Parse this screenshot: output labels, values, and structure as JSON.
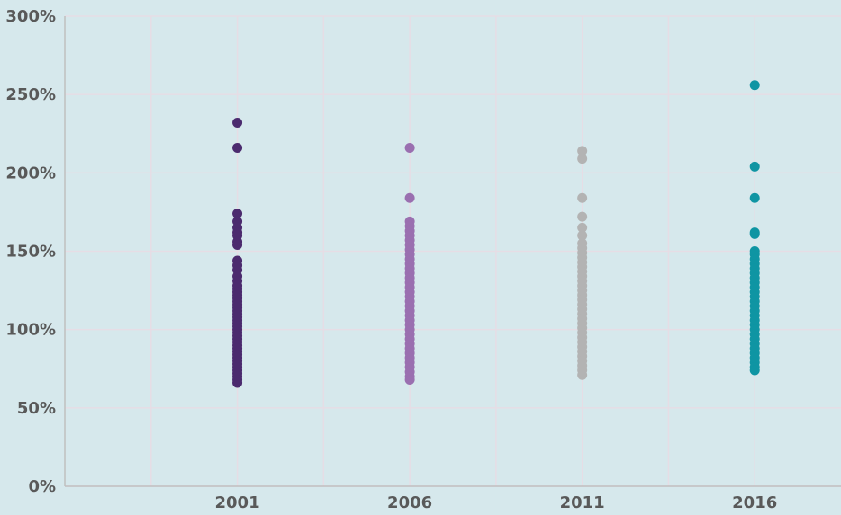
{
  "chart_data": {
    "type": "strip",
    "xlim": [
      1996,
      2018.5
    ],
    "xticks": [
      2001,
      2006,
      2011,
      2016
    ],
    "xgrid": [
      1998.5,
      2003.5,
      2008.5,
      2013.5
    ],
    "ylim": [
      0,
      300
    ],
    "yticks": [
      {
        "value": 0,
        "label": "0%"
      },
      {
        "value": 50,
        "label": "50%"
      },
      {
        "value": 100,
        "label": "100%"
      },
      {
        "value": 150,
        "label": "150%"
      },
      {
        "value": 200,
        "label": "200%"
      },
      {
        "value": 250,
        "label": "250%"
      },
      {
        "value": 300,
        "label": "300%"
      }
    ],
    "grid": true,
    "series": [
      {
        "x": 2001,
        "color": "#4b2a6e",
        "values": [
          232,
          216,
          174,
          169,
          165,
          162,
          160,
          156,
          154,
          144,
          141,
          138,
          134,
          131,
          128,
          126,
          124,
          122,
          120,
          118,
          116,
          114,
          112,
          110,
          108,
          106,
          104,
          102,
          100,
          98,
          96,
          94,
          92,
          90,
          88,
          86,
          84,
          82,
          80,
          78,
          76,
          74,
          72,
          70,
          68,
          66
        ]
      },
      {
        "x": 2006,
        "color": "#9a6fb0",
        "values": [
          216,
          184,
          169,
          166,
          163,
          160,
          157,
          154,
          151,
          148,
          145,
          142,
          139,
          136,
          133,
          130,
          127,
          124,
          121,
          118,
          115,
          112,
          109,
          106,
          103,
          100,
          97,
          94,
          91,
          88,
          85,
          82,
          79,
          76,
          73,
          70,
          68
        ]
      },
      {
        "x": 2011,
        "color": "#b3b3b3",
        "values": [
          214,
          209,
          184,
          172,
          165,
          160,
          155,
          152,
          149,
          146,
          143,
          140,
          137,
          134,
          131,
          128,
          125,
          122,
          119,
          116,
          113,
          110,
          107,
          104,
          101,
          98,
          95,
          92,
          89,
          86,
          83,
          80,
          77,
          74,
          71
        ]
      },
      {
        "x": 2016,
        "color": "#0f95a3",
        "values": [
          256,
          204,
          184,
          162,
          161,
          150,
          148,
          145,
          142,
          139,
          136,
          133,
          130,
          127,
          124,
          121,
          118,
          115,
          112,
          109,
          106,
          103,
          100,
          97,
          94,
          91,
          88,
          85,
          82,
          79,
          76,
          74
        ]
      }
    ]
  }
}
